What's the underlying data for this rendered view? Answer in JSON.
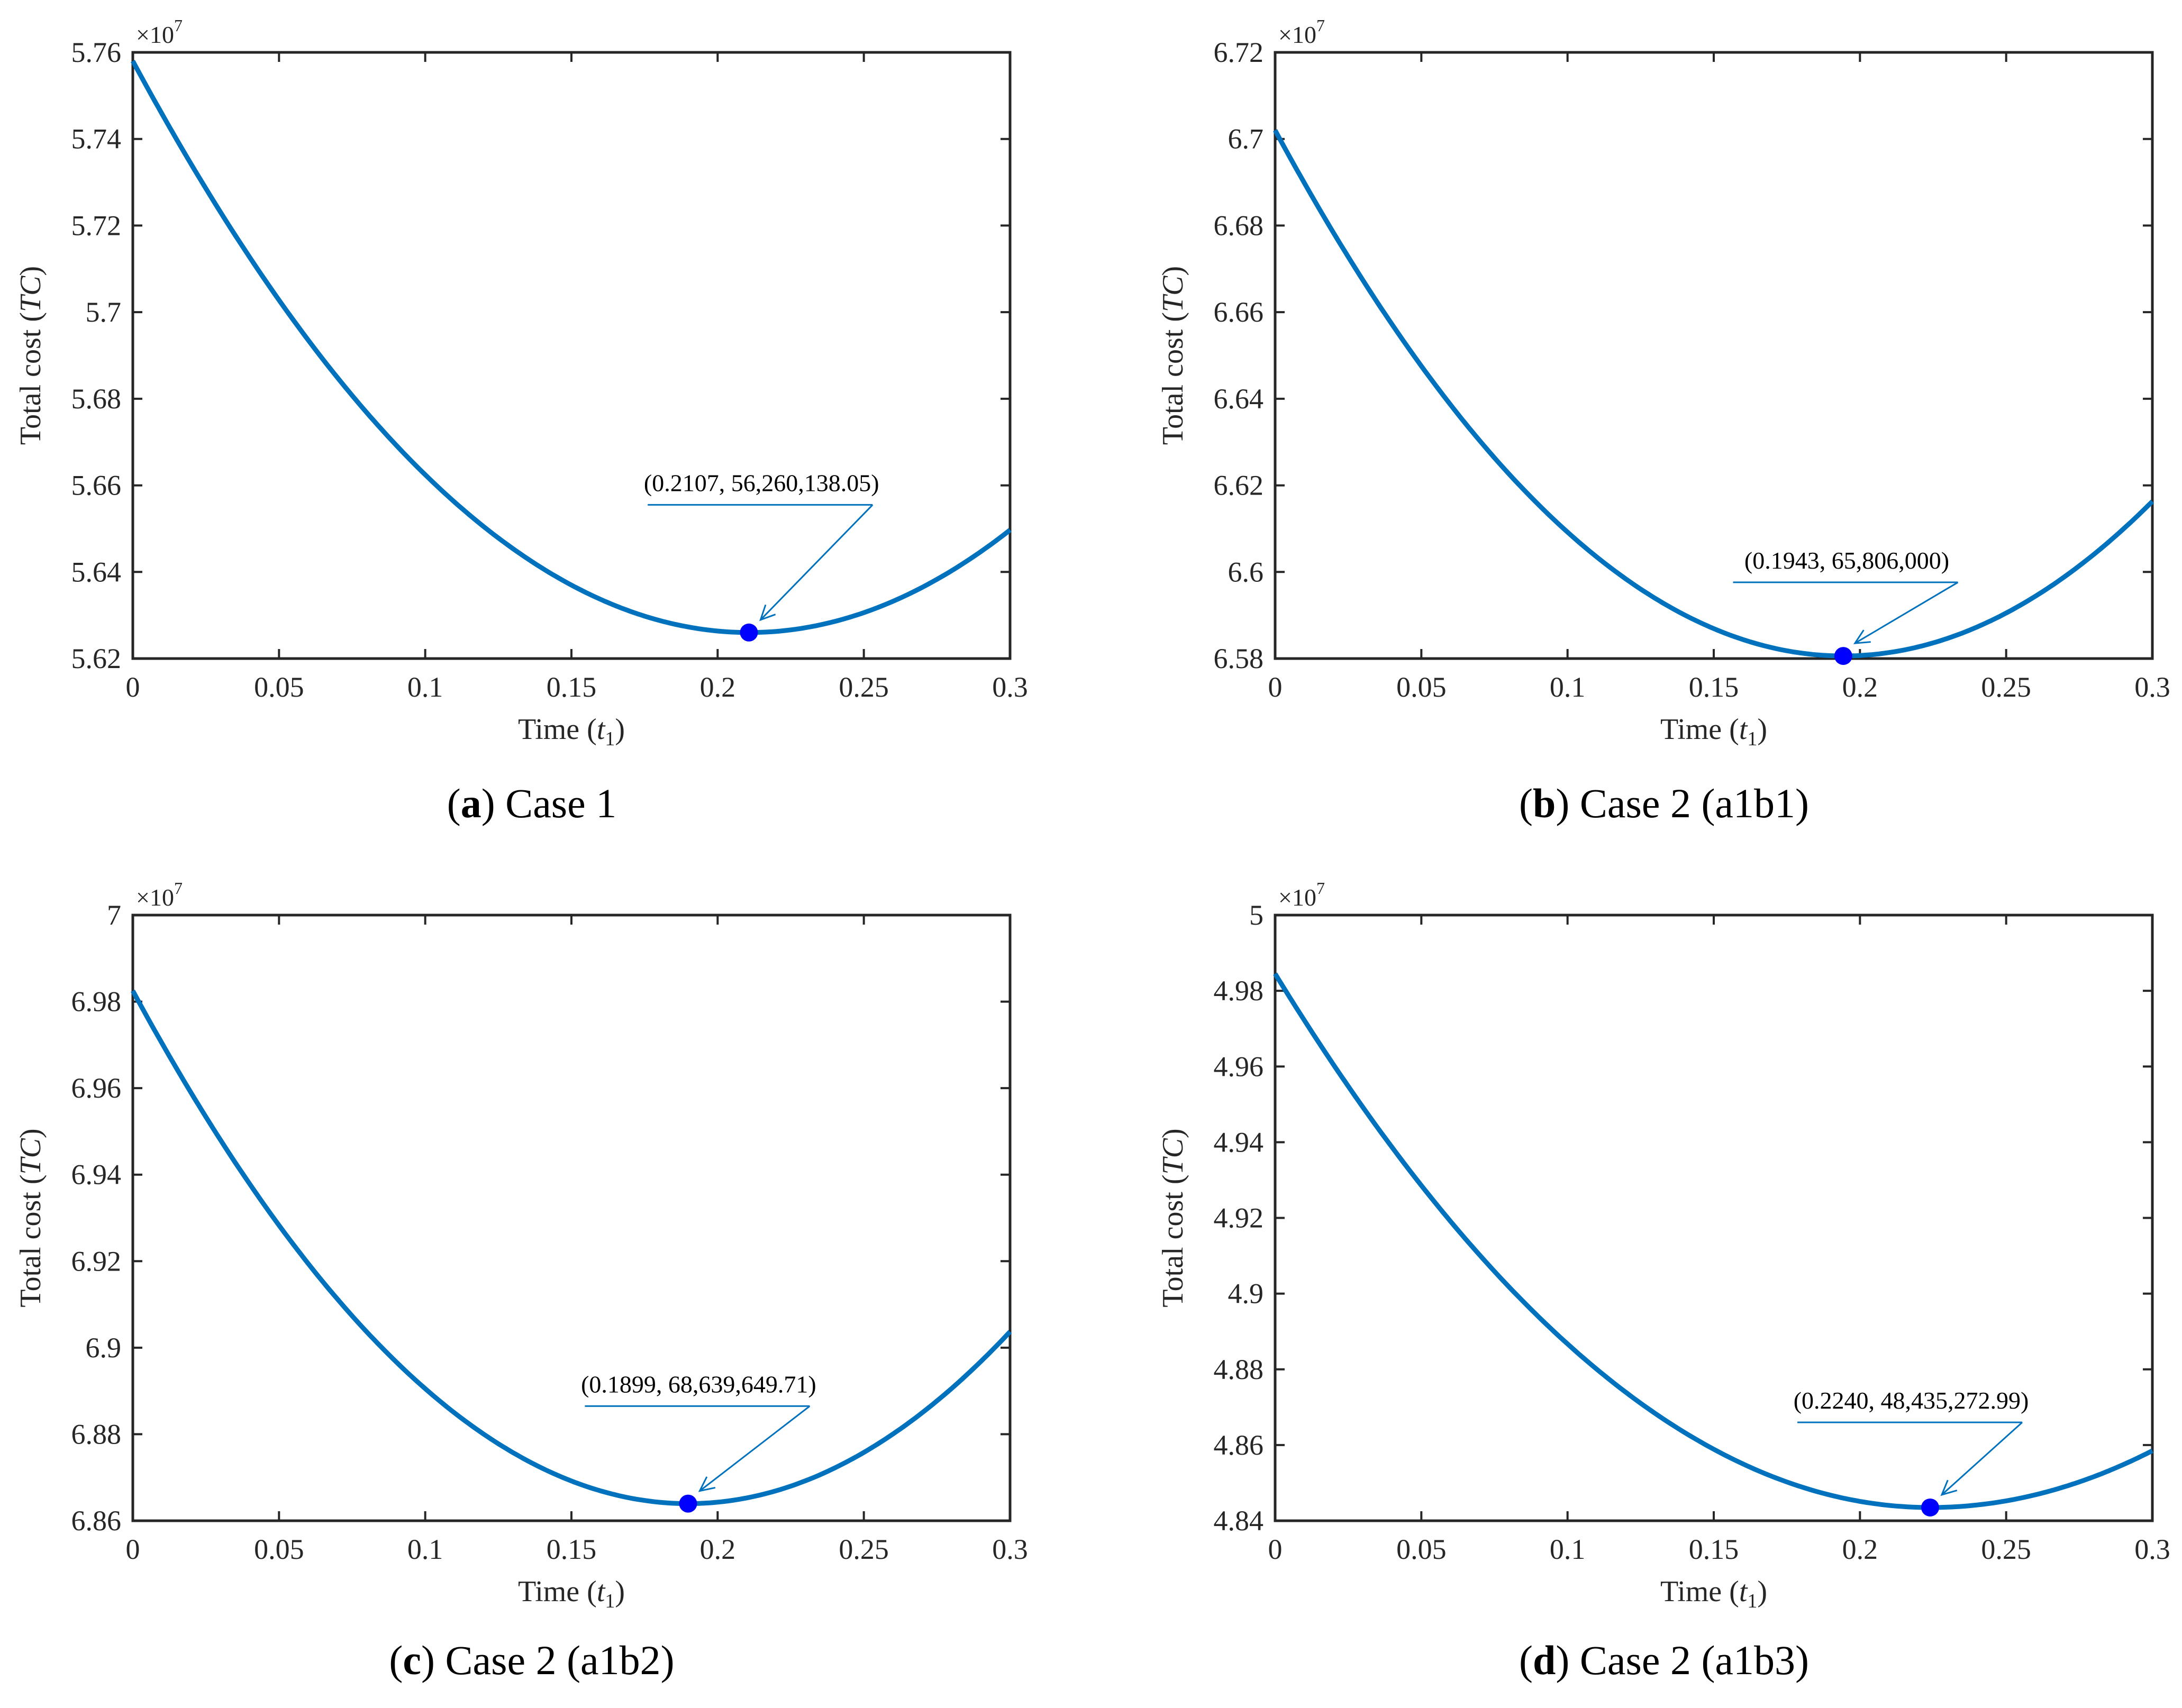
{
  "figure": {
    "axis_labels": {
      "ylabel_prefix": "Total cost (",
      "ylabel_var": "TC",
      "ylabel_suffix": ")",
      "xlabel_prefix": "Time (",
      "xlabel_var": "t",
      "xlabel_sub": "1",
      "xlabel_suffix": ")"
    },
    "multiplier": {
      "base": "×10",
      "exp": "7"
    },
    "colors": {
      "line": "#0072bd",
      "marker": "#0000ff",
      "annotation": "#0072bd",
      "axis": "#262626"
    }
  },
  "chart_data": [
    {
      "type": "line",
      "panel": "a",
      "caption_letter": "a",
      "caption_text": "Case 1",
      "xlabel": "Time (t1)",
      "ylabel": "Total cost (TC)",
      "xlim": [
        0,
        0.3
      ],
      "ylim": [
        5.62,
        5.76
      ],
      "x_ticks": [
        "0",
        "0.05",
        "0.1",
        "0.15",
        "0.2",
        "0.25",
        "0.3"
      ],
      "y_ticks": [
        "5.62",
        "5.64",
        "5.66",
        "5.68",
        "5.7",
        "5.72",
        "5.74",
        "5.76"
      ],
      "y_multiplier": "×10^7",
      "series": [
        {
          "name": "TC",
          "x0": 0,
          "y0": 5.758,
          "xmin": 0.2107,
          "ymin": 5.6260138,
          "x_end": 0.3,
          "y_end": 5.6497
        }
      ],
      "optimum": {
        "x": 0.2107,
        "y": 5.6260138,
        "label": "(0.2107,  56,260,138.05)",
        "label_x": 0.215,
        "label_y": 5.6555
      }
    },
    {
      "type": "line",
      "panel": "b",
      "caption_letter": "b",
      "caption_text": "Case 2 (a1b1)",
      "xlabel": "Time (t1)",
      "ylabel": "Total cost (TC)",
      "xlim": [
        0,
        0.3
      ],
      "ylim": [
        6.58,
        6.72
      ],
      "x_ticks": [
        "0",
        "0.05",
        "0.1",
        "0.15",
        "0.2",
        "0.25",
        "0.3"
      ],
      "y_ticks": [
        "6.58",
        "6.6",
        "6.62",
        "6.64",
        "6.66",
        "6.68",
        "6.7",
        "6.72"
      ],
      "y_multiplier": "×10^7",
      "series": [
        {
          "name": "TC",
          "x0": 0,
          "y0": 6.702,
          "xmin": 0.1943,
          "ymin": 6.5806,
          "x_end": 0.3,
          "y_end": 6.6163
        }
      ],
      "optimum": {
        "x": 0.1943,
        "y": 6.5806,
        "label": "(0.1943,  65,806,000)",
        "label_x": 0.1955,
        "label_y": 6.5976
      }
    },
    {
      "type": "line",
      "panel": "c",
      "caption_letter": "c",
      "caption_text": "Case 2 (a1b2)",
      "xlabel": "Time (t1)",
      "ylabel": "Total cost (TC)",
      "xlim": [
        0,
        0.3
      ],
      "ylim": [
        6.86,
        7.0
      ],
      "x_ticks": [
        "0",
        "0.05",
        "0.1",
        "0.15",
        "0.2",
        "0.25",
        "0.3"
      ],
      "y_ticks": [
        "6.86",
        "6.88",
        "6.9",
        "6.92",
        "6.94",
        "6.96",
        "6.98",
        "7"
      ],
      "y_multiplier": "×10^7",
      "series": [
        {
          "name": "TC",
          "x0": 0,
          "y0": 6.9825,
          "xmin": 0.1899,
          "ymin": 6.86396,
          "x_end": 0.3,
          "y_end": 6.9037
        }
      ],
      "optimum": {
        "x": 0.1899,
        "y": 6.86396,
        "label": "(0.1899,  68,639,649.71)",
        "label_x": 0.1935,
        "label_y": 6.8865
      }
    },
    {
      "type": "line",
      "panel": "d",
      "caption_letter": "d",
      "caption_text": "Case 2 (a1b3)",
      "xlabel": "Time (t1)",
      "ylabel": "Total cost (TC)",
      "xlim": [
        0,
        0.3
      ],
      "ylim": [
        4.84,
        5.0
      ],
      "x_ticks": [
        "0",
        "0.05",
        "0.1",
        "0.15",
        "0.2",
        "0.25",
        "0.3"
      ],
      "y_ticks": [
        "4.84",
        "4.86",
        "4.88",
        "4.9",
        "4.92",
        "4.94",
        "4.96",
        "4.98",
        "5"
      ],
      "y_multiplier": "×10^7",
      "series": [
        {
          "name": "TC",
          "x0": 0,
          "y0": 4.9845,
          "xmin": 0.224,
          "ymin": 4.8435,
          "x_end": 0.3,
          "y_end": 4.8585
        }
      ],
      "optimum": {
        "x": 0.224,
        "y": 4.8435,
        "label": "(0.2240,  48,435,272.99)",
        "label_x": 0.2175,
        "label_y": 4.866
      }
    }
  ]
}
